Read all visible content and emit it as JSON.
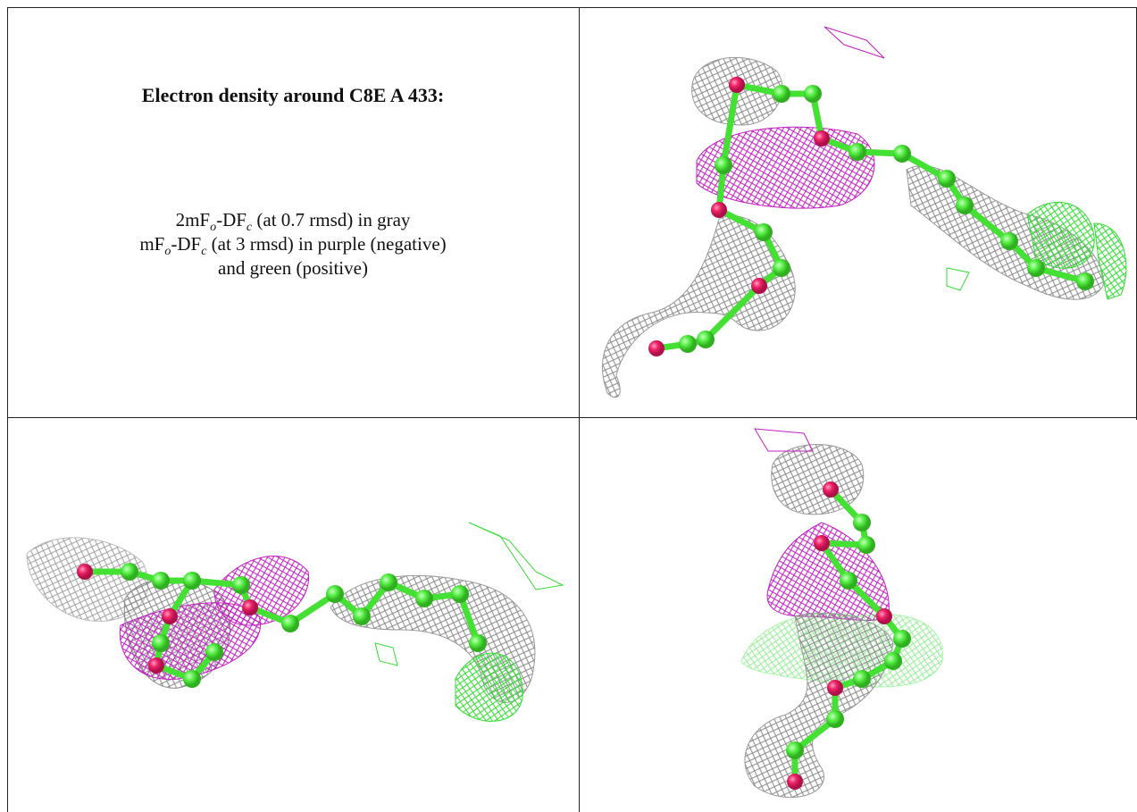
{
  "caption": {
    "title": "Electron density around C8E A 433:",
    "lines": [
      [
        "2mF",
        "o",
        "-DF",
        "c",
        " (at 0.7 rmsd) in gray"
      ],
      [
        "mF",
        "o",
        "-DF",
        "c",
        " (at 3 rmsd) in purple (negative)"
      ],
      [
        "and green (positive)"
      ]
    ]
  }
}
